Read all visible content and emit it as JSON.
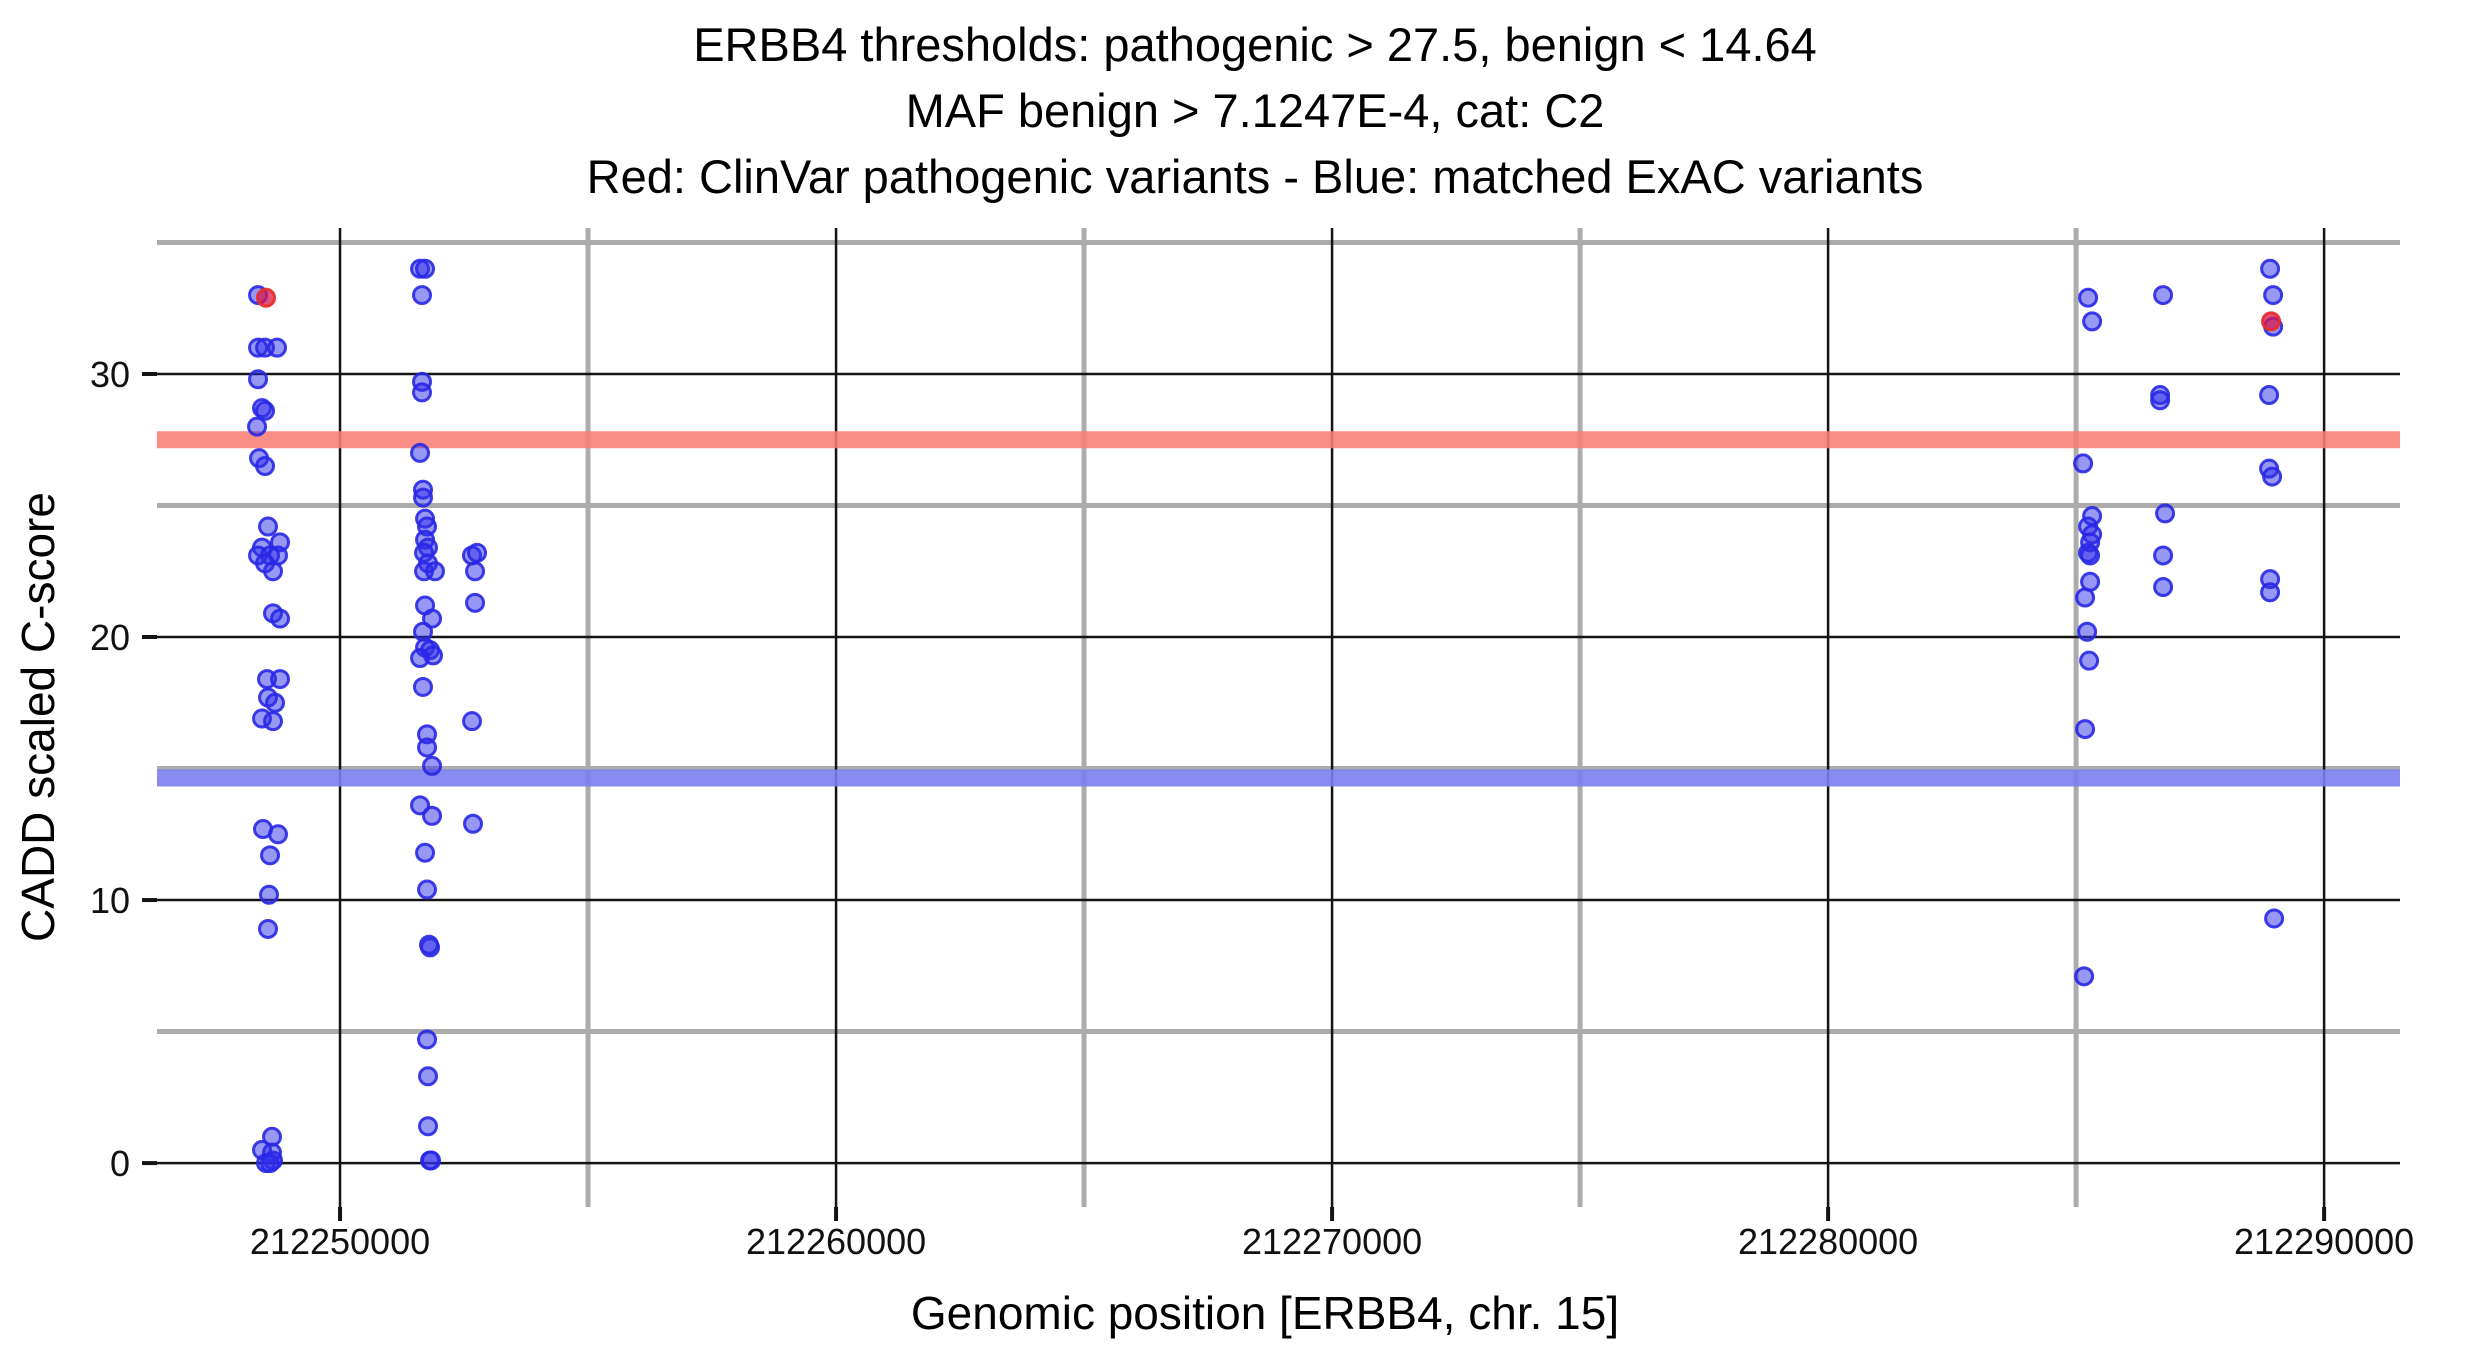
{
  "chart_data": {
    "type": "scatter",
    "title_lines": [
      "ERBB4 thresholds: pathogenic > 27.5, benign < 14.64",
      "MAF benign > 7.1247E-4, cat: C2",
      "Red: ClinVar pathogenic variants - Blue: matched ExAC variants"
    ],
    "xlabel": "Genomic position [ERBB4, chr. 15]",
    "ylabel": "CADD scaled C-score",
    "xlim": [
      212246310,
      212291530
    ],
    "ylim": [
      -1.67,
      35.55
    ],
    "grid": {
      "major_color": "#141414",
      "minor_color": "#ACACAC",
      "major_width": 2.5,
      "minor_width": 5
    },
    "legend_position": "none",
    "x_ticks": [
      {
        "value": 212250000,
        "label": "212250000"
      },
      {
        "value": 212260000,
        "label": "212260000"
      },
      {
        "value": 212270000,
        "label": "212270000"
      },
      {
        "value": 212280000,
        "label": "212280000"
      },
      {
        "value": 212290000,
        "label": "212290000"
      }
    ],
    "x_minor_ticks": [
      212255000,
      212265000,
      212275000,
      212285000
    ],
    "y_ticks": [
      {
        "value": 0,
        "label": "0"
      },
      {
        "value": 10,
        "label": "10"
      },
      {
        "value": 20,
        "label": "20"
      },
      {
        "value": 30,
        "label": "30"
      }
    ],
    "y_minor_ticks": [
      5,
      15,
      25,
      35
    ],
    "thresholds": {
      "pathogenic_value": 27.5,
      "benign_value": 14.64,
      "pathogenic_band_color": "#F87E76",
      "benign_band_color": "#7B7EF0",
      "band_height": 17
    },
    "series": [
      {
        "name": "matched ExAC variants",
        "role": "blue",
        "fill": "rgba(47,47,234,0.5)",
        "stroke": "rgba(40,40,230,0.9)",
        "points": [
          [
            212248347,
            33.0
          ],
          [
            212248347,
            31.0
          ],
          [
            212248488,
            31.0
          ],
          [
            212248730,
            31.0
          ],
          [
            212248347,
            29.8
          ],
          [
            212248427,
            28.7
          ],
          [
            212248488,
            28.6
          ],
          [
            212248327,
            28.0
          ],
          [
            212248367,
            26.8
          ],
          [
            212248488,
            26.5
          ],
          [
            212248548,
            24.2
          ],
          [
            212248790,
            23.6
          ],
          [
            212248427,
            23.4
          ],
          [
            212248347,
            23.1
          ],
          [
            212248589,
            23.1
          ],
          [
            212248750,
            23.1
          ],
          [
            212248488,
            22.8
          ],
          [
            212248649,
            22.5
          ],
          [
            212248649,
            20.9
          ],
          [
            212248790,
            20.7
          ],
          [
            212248528,
            18.4
          ],
          [
            212248790,
            18.4
          ],
          [
            212248548,
            17.7
          ],
          [
            212248690,
            17.5
          ],
          [
            212248427,
            16.9
          ],
          [
            212248649,
            16.8
          ],
          [
            212248447,
            12.7
          ],
          [
            212248750,
            12.5
          ],
          [
            212248589,
            11.7
          ],
          [
            212248568,
            10.2
          ],
          [
            212248548,
            8.9
          ],
          [
            212248629,
            1.0
          ],
          [
            212248427,
            0.5
          ],
          [
            212248629,
            0.4
          ],
          [
            212248649,
            0.1
          ],
          [
            212248508,
            0.0
          ],
          [
            212248589,
            0.0
          ],
          [
            212251613,
            34.0
          ],
          [
            212251714,
            34.0
          ],
          [
            212251653,
            33.0
          ],
          [
            212251653,
            29.7
          ],
          [
            212251653,
            29.3
          ],
          [
            212251613,
            27.0
          ],
          [
            212251673,
            25.6
          ],
          [
            212251673,
            25.3
          ],
          [
            212251714,
            24.5
          ],
          [
            212251754,
            24.2
          ],
          [
            212251714,
            23.7
          ],
          [
            212251774,
            23.4
          ],
          [
            212251694,
            23.2
          ],
          [
            212251774,
            22.8
          ],
          [
            212251694,
            22.5
          ],
          [
            212251915,
            22.5
          ],
          [
            212251714,
            21.2
          ],
          [
            212251855,
            20.7
          ],
          [
            212251673,
            20.2
          ],
          [
            212251714,
            19.6
          ],
          [
            212251815,
            19.5
          ],
          [
            212251875,
            19.3
          ],
          [
            212251613,
            19.2
          ],
          [
            212251673,
            18.1
          ],
          [
            212251754,
            16.3
          ],
          [
            212251754,
            15.8
          ],
          [
            212251855,
            15.1
          ],
          [
            212251613,
            13.6
          ],
          [
            212251855,
            13.2
          ],
          [
            212251714,
            11.8
          ],
          [
            212251754,
            10.4
          ],
          [
            212251815,
            8.2
          ],
          [
            212251794,
            8.3
          ],
          [
            212251754,
            4.7
          ],
          [
            212251774,
            3.3
          ],
          [
            212251774,
            1.4
          ],
          [
            212251815,
            0.1
          ],
          [
            212251835,
            0.1
          ],
          [
            212252661,
            23.1
          ],
          [
            212252762,
            23.2
          ],
          [
            212252722,
            22.5
          ],
          [
            212252722,
            21.3
          ],
          [
            212252661,
            16.8
          ],
          [
            212252681,
            12.9
          ],
          [
            212285242,
            32.9
          ],
          [
            212285323,
            32.0
          ],
          [
            212285141,
            26.6
          ],
          [
            212285323,
            24.6
          ],
          [
            212285242,
            24.2
          ],
          [
            212285323,
            23.9
          ],
          [
            212285282,
            23.6
          ],
          [
            212285242,
            23.2
          ],
          [
            212285282,
            23.1
          ],
          [
            212285282,
            22.1
          ],
          [
            212285181,
            21.5
          ],
          [
            212285222,
            20.2
          ],
          [
            212285262,
            19.1
          ],
          [
            212285181,
            16.5
          ],
          [
            212285161,
            7.1
          ],
          [
            212286754,
            33.0
          ],
          [
            212286694,
            29.2
          ],
          [
            212286694,
            29.0
          ],
          [
            212286794,
            24.7
          ],
          [
            212286754,
            23.1
          ],
          [
            212286754,
            21.9
          ],
          [
            212288911,
            34.0
          ],
          [
            212288972,
            33.0
          ],
          [
            212288972,
            31.8
          ],
          [
            212288891,
            29.2
          ],
          [
            212288891,
            26.4
          ],
          [
            212288952,
            26.1
          ],
          [
            212288911,
            22.2
          ],
          [
            212288911,
            21.7
          ],
          [
            212288992,
            9.3
          ]
        ]
      },
      {
        "name": "ClinVar pathogenic variants",
        "role": "red",
        "fill": "rgba(215,25,75,0.75)",
        "stroke": "rgba(233,45,45,0.95)",
        "points": [
          [
            212248508,
            32.9
          ],
          [
            212288931,
            32.0
          ]
        ]
      }
    ]
  }
}
